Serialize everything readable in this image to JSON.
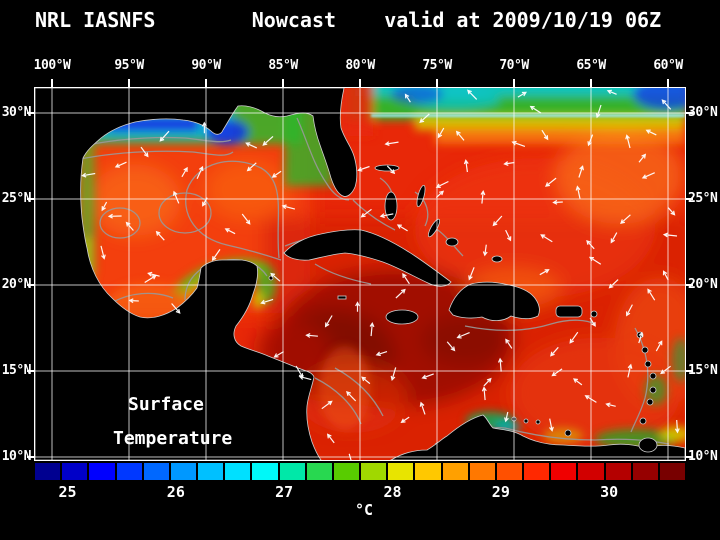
{
  "header": {
    "title": "NRL IASNFS        Nowcast    valid at 2009/10/19 06Z"
  },
  "axes": {
    "lon_labels": [
      "100°W",
      "95°W",
      "90°W",
      "85°W",
      "80°W",
      "75°W",
      "70°W",
      "65°W",
      "60°W"
    ],
    "lat_labels": [
      "30°N",
      "25°N",
      "20°N",
      "15°N",
      "10°N"
    ]
  },
  "map_overlay": {
    "line1": "Surface",
    "line2": "Temperature"
  },
  "colorbar": {
    "unit": "°C",
    "ticks": [
      25,
      26,
      27,
      28,
      29,
      30
    ],
    "scale_min": 24.7,
    "scale_max": 30.7,
    "colors": [
      "#000090",
      "#0000c8",
      "#0000ff",
      "#0038ff",
      "#0068ff",
      "#0098ff",
      "#00c0ff",
      "#00e0ff",
      "#00f8f8",
      "#00e8a8",
      "#28d850",
      "#58cc00",
      "#a0d800",
      "#e8e400",
      "#ffc800",
      "#ffa000",
      "#ff7800",
      "#ff5000",
      "#ff2800",
      "#f00000",
      "#d20000",
      "#b40000",
      "#960000",
      "#780000"
    ]
  },
  "chart_data": {
    "type": "heatmap",
    "title": "NRL IASNFS Nowcast valid at 2009/10/19 06Z",
    "variable": "Surface Temperature",
    "unit": "°C",
    "colorbar_ticks": [
      25,
      26,
      27,
      28,
      29,
      30
    ],
    "colorbar_range": [
      24.7,
      30.7
    ],
    "x_axis": {
      "labels": [
        "100°W",
        "95°W",
        "90°W",
        "85°W",
        "80°W",
        "75°W",
        "70°W",
        "65°W",
        "60°W"
      ]
    },
    "y_axis": {
      "labels": [
        "30°N",
        "25°N",
        "20°N",
        "15°N",
        "10°N"
      ]
    },
    "overlay": "surface current vectors (white arrows), gray bathymetry/frontal contours, land masked black"
  }
}
